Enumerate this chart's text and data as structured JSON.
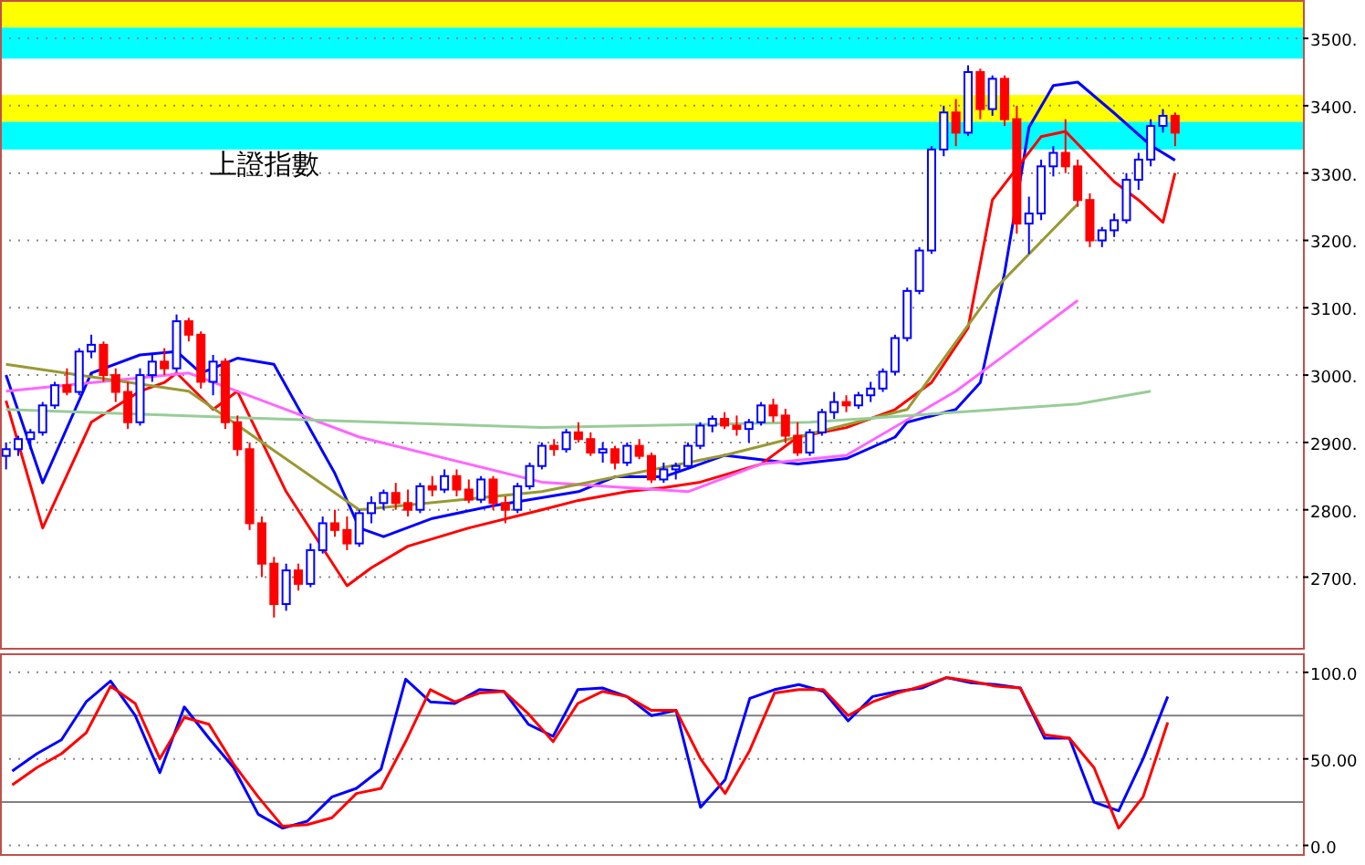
{
  "chart_data": [
    {
      "type": "candlestick",
      "title": "上證指數",
      "categories": [
        null,
        null,
        null,
        null,
        null,
        null,
        null,
        null,
        null,
        null,
        null,
        null,
        null,
        null,
        null,
        null,
        null,
        null,
        null,
        null,
        null,
        null,
        null,
        null,
        null,
        null,
        null,
        null,
        null,
        null,
        null,
        null,
        null,
        null,
        null,
        null,
        null,
        null,
        null,
        null,
        null,
        null,
        null,
        null,
        null,
        null,
        null,
        null,
        null,
        null,
        null,
        null,
        null,
        null,
        null,
        null,
        null,
        null,
        null,
        null,
        null,
        null,
        null,
        null,
        null,
        null,
        null,
        null,
        null,
        null,
        null,
        null,
        null,
        null,
        null,
        null,
        null,
        null,
        null,
        null,
        null,
        null,
        null,
        null,
        null,
        null,
        null,
        null,
        null,
        null,
        null,
        null,
        null,
        null,
        null,
        null,
        null,
        null,
        null,
        null,
        null,
        null,
        null,
        null,
        null,
        null,
        null
      ],
      "ohlc": [
        [
          2880,
          2900,
          2860,
          2890
        ],
        [
          2890,
          2910,
          2880,
          2905
        ],
        [
          2905,
          2920,
          2890,
          2915
        ],
        [
          2915,
          2960,
          2910,
          2955
        ],
        [
          2955,
          2990,
          2950,
          2985
        ],
        [
          2985,
          3010,
          2970,
          2975
        ],
        [
          2975,
          3040,
          2970,
          3035
        ],
        [
          3035,
          3060,
          3025,
          3045
        ],
        [
          3045,
          3050,
          2990,
          3000
        ],
        [
          3000,
          3010,
          2960,
          2975
        ],
        [
          2975,
          2990,
          2920,
          2930
        ],
        [
          2930,
          3010,
          2925,
          3000
        ],
        [
          3000,
          3030,
          2990,
          3020
        ],
        [
          3020,
          3040,
          3000,
          3010
        ],
        [
          3010,
          3090,
          3005,
          3080
        ],
        [
          3080,
          3085,
          3050,
          3060
        ],
        [
          3060,
          3065,
          2980,
          2990
        ],
        [
          2990,
          3030,
          2970,
          3020
        ],
        [
          3020,
          3025,
          2920,
          2930
        ],
        [
          2930,
          2940,
          2880,
          2890
        ],
        [
          2890,
          2900,
          2770,
          2780
        ],
        [
          2780,
          2790,
          2700,
          2720
        ],
        [
          2720,
          2730,
          2640,
          2660
        ],
        [
          2660,
          2720,
          2650,
          2710
        ],
        [
          2710,
          2720,
          2680,
          2690
        ],
        [
          2690,
          2750,
          2685,
          2740
        ],
        [
          2740,
          2790,
          2735,
          2780
        ],
        [
          2780,
          2800,
          2760,
          2770
        ],
        [
          2770,
          2790,
          2740,
          2750
        ],
        [
          2750,
          2800,
          2745,
          2795
        ],
        [
          2795,
          2820,
          2780,
          2810
        ],
        [
          2810,
          2830,
          2800,
          2825
        ],
        [
          2825,
          2840,
          2800,
          2810
        ],
        [
          2810,
          2830,
          2790,
          2800
        ],
        [
          2800,
          2840,
          2795,
          2835
        ],
        [
          2835,
          2850,
          2820,
          2830
        ],
        [
          2830,
          2860,
          2825,
          2850
        ],
        [
          2850,
          2860,
          2820,
          2830
        ],
        [
          2830,
          2845,
          2810,
          2815
        ],
        [
          2815,
          2850,
          2810,
          2845
        ],
        [
          2845,
          2850,
          2800,
          2810
        ],
        [
          2810,
          2820,
          2780,
          2800
        ],
        [
          2800,
          2840,
          2795,
          2835
        ],
        [
          2835,
          2870,
          2830,
          2865
        ],
        [
          2865,
          2900,
          2860,
          2895
        ],
        [
          2895,
          2905,
          2880,
          2890
        ],
        [
          2890,
          2920,
          2885,
          2915
        ],
        [
          2915,
          2930,
          2900,
          2905
        ],
        [
          2905,
          2915,
          2880,
          2885
        ],
        [
          2885,
          2900,
          2870,
          2890
        ],
        [
          2890,
          2895,
          2860,
          2870
        ],
        [
          2870,
          2900,
          2865,
          2895
        ],
        [
          2895,
          2905,
          2875,
          2880
        ],
        [
          2880,
          2885,
          2840,
          2845
        ],
        [
          2845,
          2870,
          2840,
          2860
        ],
        [
          2860,
          2870,
          2845,
          2865
        ],
        [
          2865,
          2900,
          2860,
          2895
        ],
        [
          2895,
          2930,
          2890,
          2925
        ],
        [
          2925,
          2940,
          2915,
          2935
        ],
        [
          2935,
          2945,
          2920,
          2925
        ],
        [
          2925,
          2940,
          2910,
          2920
        ],
        [
          2920,
          2935,
          2900,
          2930
        ],
        [
          2930,
          2960,
          2925,
          2955
        ],
        [
          2955,
          2965,
          2930,
          2940
        ],
        [
          2940,
          2950,
          2900,
          2910
        ],
        [
          2910,
          2930,
          2880,
          2885
        ],
        [
          2885,
          2920,
          2880,
          2915
        ],
        [
          2915,
          2950,
          2910,
          2945
        ],
        [
          2945,
          2975,
          2935,
          2960
        ],
        [
          2960,
          2970,
          2945,
          2955
        ],
        [
          2955,
          2975,
          2950,
          2970
        ],
        [
          2970,
          2990,
          2960,
          2980
        ],
        [
          2980,
          3010,
          2975,
          3005
        ],
        [
          3005,
          3060,
          3000,
          3055
        ],
        [
          3055,
          3130,
          3050,
          3125
        ],
        [
          3125,
          3190,
          3120,
          3185
        ],
        [
          3185,
          3340,
          3180,
          3335
        ],
        [
          3335,
          3400,
          3325,
          3390
        ],
        [
          3390,
          3410,
          3340,
          3360
        ],
        [
          3360,
          3460,
          3355,
          3450
        ],
        [
          3450,
          3455,
          3380,
          3395
        ],
        [
          3395,
          3445,
          3385,
          3440
        ],
        [
          3440,
          3445,
          3370,
          3380
        ],
        [
          3380,
          3400,
          3210,
          3225
        ],
        [
          3225,
          3265,
          3180,
          3240
        ],
        [
          3240,
          3320,
          3230,
          3310
        ],
        [
          3310,
          3340,
          3295,
          3330
        ],
        [
          3330,
          3380,
          3300,
          3310
        ],
        [
          3310,
          3320,
          3250,
          3260
        ],
        [
          3260,
          3270,
          3190,
          3200
        ],
        [
          3200,
          3220,
          3190,
          3215
        ],
        [
          3215,
          3240,
          3205,
          3230
        ],
        [
          3230,
          3300,
          3225,
          3290
        ],
        [
          3290,
          3330,
          3275,
          3320
        ],
        [
          3320,
          3380,
          3310,
          3370
        ],
        [
          3370,
          3395,
          3360,
          3385
        ],
        [
          3385,
          3390,
          3340,
          3360
        ],
        null,
        null,
        null,
        null,
        null,
        null,
        null,
        null,
        null,
        null
      ],
      "series": [
        {
          "type": "line",
          "color": "#0000ff",
          "values": [
            3000,
            null,
            null,
            2840,
            null,
            null,
            null,
            3003,
            null,
            null,
            null,
            3030,
            null,
            null,
            3035,
            null,
            3003,
            null,
            null,
            3025,
            null,
            null,
            3016,
            null,
            null,
            null,
            null,
            2854,
            null,
            2773,
            null,
            2760,
            null,
            null,
            null,
            2787,
            null,
            null,
            null,
            null,
            2806,
            null,
            null,
            null,
            null,
            null,
            null,
            2827,
            null,
            null,
            2849,
            null,
            null,
            null,
            2849,
            null,
            null,
            2868,
            null,
            2881,
            null,
            null,
            null,
            null,
            null,
            2868,
            null,
            null,
            null,
            2876,
            null,
            null,
            null,
            2908,
            2930,
            null,
            null,
            null,
            2949,
            null,
            2989,
            null,
            3152,
            null,
            3368,
            null,
            3430,
            null,
            3435,
            null,
            null,
            3389,
            null,
            null,
            3341,
            null,
            3319,
            null,
            null,
            null,
            null,
            null,
            null,
            null,
            null,
            null,
            null
          ]
        },
        {
          "type": "line",
          "color": "#ff0000",
          "values": [
            2962,
            null,
            null,
            2773,
            null,
            null,
            null,
            2930,
            null,
            null,
            null,
            2976,
            null,
            2989,
            3003,
            null,
            null,
            2949,
            null,
            2976,
            null,
            null,
            null,
            2827,
            null,
            null,
            null,
            null,
            2687,
            null,
            2714,
            null,
            null,
            2746,
            null,
            null,
            null,
            null,
            2773,
            null,
            null,
            null,
            null,
            null,
            2800,
            null,
            null,
            2814,
            null,
            null,
            null,
            2827,
            null,
            null,
            2833,
            null,
            null,
            2841,
            null,
            null,
            null,
            null,
            2868,
            null,
            null,
            2908,
            null,
            null,
            null,
            2922,
            null,
            null,
            null,
            2949,
            null,
            null,
            2989,
            null,
            null,
            3070,
            null,
            3260,
            null,
            null,
            null,
            3354,
            null,
            3362,
            null,
            null,
            null,
            3287,
            null,
            3260,
            null,
            3227,
            3300,
            null,
            null,
            null,
            null,
            null,
            null,
            null,
            null,
            null,
            null
          ]
        },
        {
          "type": "line",
          "color": "#ff66ff",
          "values": [
            2976,
            null,
            null,
            null,
            null,
            null,
            null,
            null,
            null,
            null,
            null,
            null,
            null,
            null,
            null,
            3003,
            null,
            null,
            null,
            null,
            null,
            null,
            null,
            null,
            null,
            null,
            null,
            null,
            null,
            2908,
            null,
            null,
            null,
            null,
            null,
            null,
            null,
            null,
            null,
            null,
            null,
            null,
            null,
            null,
            2841,
            null,
            null,
            null,
            null,
            null,
            null,
            null,
            null,
            null,
            null,
            null,
            2827,
            null,
            null,
            null,
            null,
            null,
            2868,
            null,
            null,
            null,
            null,
            null,
            null,
            2881,
            null,
            null,
            null,
            null,
            null,
            null,
            null,
            null,
            2976,
            null,
            null,
            null,
            null,
            3043,
            null,
            null,
            null,
            null,
            3111,
            null,
            null,
            null,
            null,
            null,
            null,
            null,
            null,
            null,
            null,
            null,
            null,
            null,
            null,
            null,
            null,
            null,
            null
          ]
        },
        {
          "type": "line",
          "color": "#999933",
          "values": [
            3016,
            null,
            null,
            null,
            null,
            null,
            null,
            null,
            null,
            null,
            null,
            null,
            null,
            null,
            null,
            2976,
            null,
            null,
            null,
            null,
            null,
            null,
            null,
            null,
            null,
            null,
            null,
            null,
            null,
            2800,
            null,
            null,
            null,
            null,
            null,
            null,
            null,
            null,
            null,
            null,
            null,
            null,
            null,
            null,
            2827,
            null,
            null,
            null,
            null,
            null,
            null,
            null,
            null,
            null,
            null,
            null,
            null,
            null,
            null,
            2881,
            null,
            null,
            null,
            null,
            null,
            null,
            null,
            null,
            null,
            null,
            null,
            null,
            null,
            null,
            2949,
            null,
            null,
            null,
            null,
            null,
            null,
            3124,
            null,
            null,
            null,
            null,
            null,
            null,
            3254,
            null,
            null,
            null,
            null,
            null,
            null,
            null,
            null,
            null,
            null,
            null,
            null,
            null,
            null,
            null,
            null,
            null,
            null
          ]
        },
        {
          "type": "line",
          "color": "#99cc99",
          "values": [
            2949,
            null,
            null,
            null,
            null,
            null,
            null,
            null,
            null,
            null,
            null,
            null,
            null,
            null,
            null,
            null,
            null,
            null,
            null,
            null,
            null,
            null,
            2935,
            null,
            null,
            null,
            null,
            null,
            null,
            null,
            null,
            null,
            null,
            null,
            null,
            null,
            null,
            null,
            null,
            null,
            null,
            null,
            null,
            null,
            2922,
            null,
            null,
            null,
            null,
            null,
            null,
            null,
            null,
            null,
            null,
            null,
            null,
            null,
            null,
            null,
            null,
            null,
            null,
            null,
            null,
            null,
            2930,
            null,
            null,
            null,
            null,
            null,
            null,
            null,
            null,
            null,
            null,
            null,
            null,
            null,
            null,
            null,
            null,
            null,
            null,
            null,
            null,
            null,
            2957,
            null,
            null,
            null,
            null,
            null,
            2976,
            null,
            null,
            null,
            null,
            null,
            null,
            null,
            null,
            null,
            null,
            null,
            null
          ]
        }
      ],
      "bands": [
        {
          "axis": "y",
          "from": 3516,
          "to": 3557,
          "color": "#ffff00"
        },
        {
          "axis": "y",
          "from": 3470,
          "to": 3516,
          "color": "#00ffff"
        },
        {
          "axis": "y",
          "from": 3376,
          "to": 3416,
          "color": "#ffff00"
        },
        {
          "axis": "y",
          "from": 3335,
          "to": 3376,
          "color": "#00ffff"
        }
      ],
      "ylim": [
        2595,
        3557
      ],
      "yticks": [
        {
          "value": 2700,
          "label": "2700."
        },
        {
          "value": 2800,
          "label": "2800."
        },
        {
          "value": 2900,
          "label": "2900."
        },
        {
          "value": 3000,
          "label": "3000."
        },
        {
          "value": 3100,
          "label": "3100."
        },
        {
          "value": 3200,
          "label": "3200."
        },
        {
          "value": 3300,
          "label": "3300."
        },
        {
          "value": 3400,
          "label": "3400."
        },
        {
          "value": 3500,
          "label": "3500."
        }
      ],
      "grid": "y"
    },
    {
      "type": "line",
      "categories": [
        null,
        null,
        null,
        null,
        null,
        null,
        null,
        null,
        null,
        null,
        null,
        null,
        null,
        null,
        null,
        null,
        null,
        null,
        null,
        null,
        null,
        null,
        null,
        null,
        null,
        null,
        null,
        null,
        null,
        null,
        null,
        null,
        null,
        null,
        null,
        null,
        null,
        null,
        null,
        null,
        null,
        null,
        null,
        null,
        null,
        null,
        null,
        null,
        null,
        null,
        null,
        null,
        null
      ],
      "series": [
        {
          "color": "#0000ff",
          "values": [
            43,
            53,
            61,
            83,
            95,
            75,
            42,
            80,
            62,
            45,
            18,
            10,
            14,
            28,
            33,
            44,
            96,
            83,
            82,
            90,
            89,
            70,
            63,
            90,
            91,
            86,
            75,
            78,
            22,
            38,
            85,
            90,
            93,
            89,
            72,
            86,
            89,
            91,
            97,
            94,
            93,
            91,
            62,
            62,
            25,
            20,
            50,
            86,
            null,
            null,
            null,
            null,
            null
          ]
        },
        {
          "color": "#ff0000",
          "values": [
            35,
            45,
            53,
            65,
            92,
            82,
            50,
            74,
            70,
            47,
            28,
            11,
            12,
            16,
            30,
            33,
            60,
            90,
            83,
            88,
            89,
            76,
            60,
            82,
            89,
            86,
            78,
            78,
            50,
            30,
            55,
            88,
            90,
            90,
            75,
            83,
            88,
            92,
            97,
            95,
            92,
            91,
            64,
            62,
            45,
            10,
            28,
            71,
            null,
            null,
            null,
            null,
            null
          ]
        }
      ],
      "ref_lines": [
        {
          "axis": "y",
          "value": 75,
          "color": "#808080"
        },
        {
          "axis": "y",
          "value": 25,
          "color": "#808080"
        }
      ],
      "ylim": [
        -5,
        111
      ],
      "yticks": [
        {
          "value": 0,
          "label": "0.0"
        },
        {
          "value": 50,
          "label": "50.00"
        },
        {
          "value": 100,
          "label": "100.0"
        }
      ],
      "grid": "y"
    }
  ]
}
